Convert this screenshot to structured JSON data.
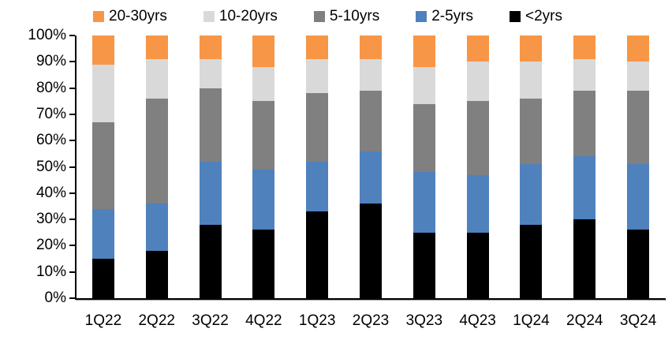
{
  "chart_data": {
    "type": "bar",
    "variant": "stacked-100-percent-column",
    "title": "",
    "xlabel": "",
    "ylabel": "",
    "grid": false,
    "legend_position": "top",
    "categories": [
      "1Q22",
      "2Q22",
      "3Q22",
      "4Q22",
      "1Q23",
      "2Q23",
      "3Q23",
      "4Q23",
      "1Q24",
      "2Q24",
      "3Q24"
    ],
    "series": [
      {
        "key": "lt2yrs",
        "name": "<2yrs",
        "color": "#000000",
        "values": [
          15,
          18,
          28,
          26,
          33,
          36,
          25,
          25,
          28,
          30,
          26
        ]
      },
      {
        "key": "2to5yrs",
        "name": "2-5yrs",
        "color": "#4F81BD",
        "values": [
          19,
          18,
          24,
          23,
          19,
          20,
          23,
          22,
          23,
          24,
          25
        ]
      },
      {
        "key": "5to10yrs",
        "name": "5-10yrs",
        "color": "#808080",
        "values": [
          33,
          40,
          28,
          26,
          26,
          23,
          26,
          28,
          25,
          25,
          28
        ]
      },
      {
        "key": "10to20yrs",
        "name": "10-20yrs",
        "color": "#D9D9D9",
        "values": [
          22,
          15,
          11,
          13,
          13,
          12,
          14,
          15,
          14,
          12,
          11
        ]
      },
      {
        "key": "20to30yrs",
        "name": "20-30yrs",
        "color": "#F79646",
        "values": [
          11,
          9,
          9,
          12,
          9,
          9,
          12,
          10,
          10,
          9,
          10
        ]
      }
    ],
    "legend_order_keys": [
      "20to30yrs",
      "10to20yrs",
      "5to10yrs",
      "2to5yrs",
      "lt2yrs"
    ],
    "y_axis": {
      "min": 0,
      "max": 100,
      "step": 10,
      "tick_labels": [
        "100%",
        "90%",
        "80%",
        "70%",
        "60%",
        "50%",
        "40%",
        "30%",
        "20%",
        "10%",
        "0%"
      ]
    }
  }
}
